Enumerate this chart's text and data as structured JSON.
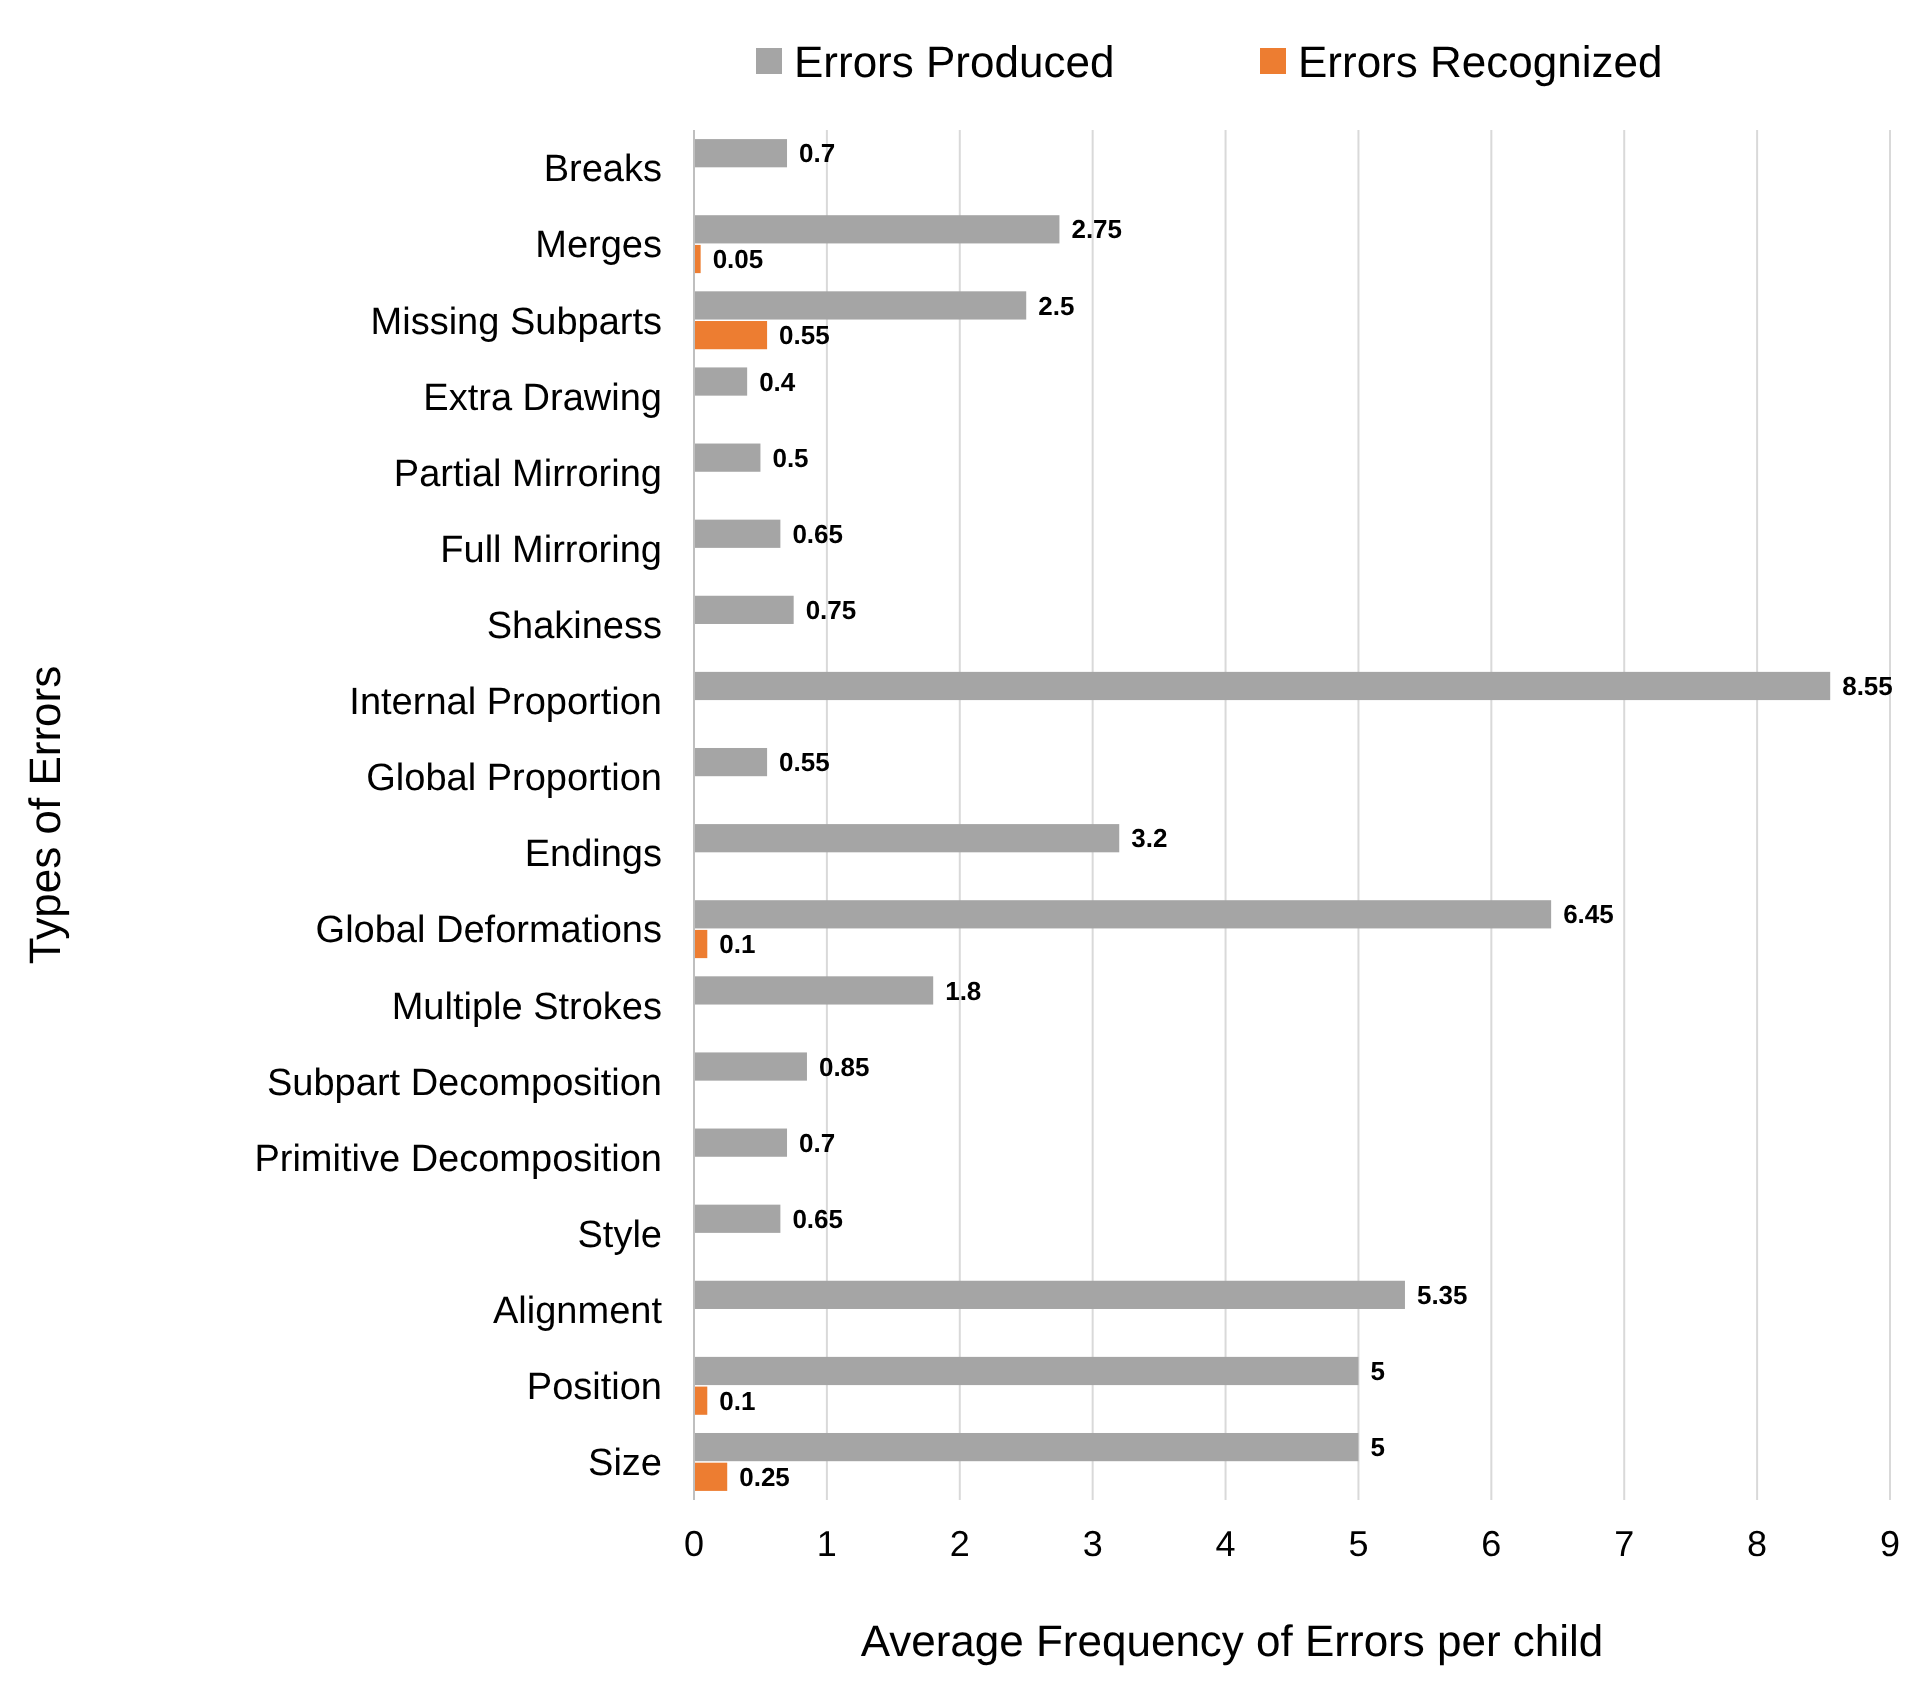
{
  "chart_data": {
    "type": "bar",
    "orientation": "horizontal",
    "xlabel": "Average Frequency of Errors per child",
    "ylabel": "Types of Errors",
    "categories": [
      "Breaks",
      "Merges",
      "Missing Subparts",
      "Extra Drawing",
      "Partial Mirroring",
      "Full Mirroring",
      "Shakiness",
      "Internal Proportion",
      "Global Proportion",
      "Endings",
      "Global Deformations",
      "Multiple Strokes",
      "Subpart Decomposition",
      "Primitive Decomposition",
      "Style",
      "Alignment",
      "Position",
      "Size"
    ],
    "series": [
      {
        "name": "Errors Produced",
        "color": "#a5a5a5",
        "values": [
          0.7,
          2.75,
          2.5,
          0.4,
          0.5,
          0.65,
          0.75,
          8.55,
          0.55,
          3.2,
          6.45,
          1.8,
          0.85,
          0.7,
          0.65,
          5.35,
          5,
          5
        ]
      },
      {
        "name": "Errors Recognized",
        "color": "#ed7d31",
        "values": [
          null,
          0.05,
          0.55,
          null,
          null,
          null,
          null,
          null,
          null,
          null,
          0.1,
          null,
          null,
          null,
          null,
          null,
          0.1,
          0.25
        ]
      }
    ],
    "xlim": [
      0,
      9
    ],
    "xticks": [
      0,
      1,
      2,
      3,
      4,
      5,
      6,
      7,
      8,
      9
    ],
    "grid": "x",
    "legend": "top",
    "data_labels": true
  }
}
